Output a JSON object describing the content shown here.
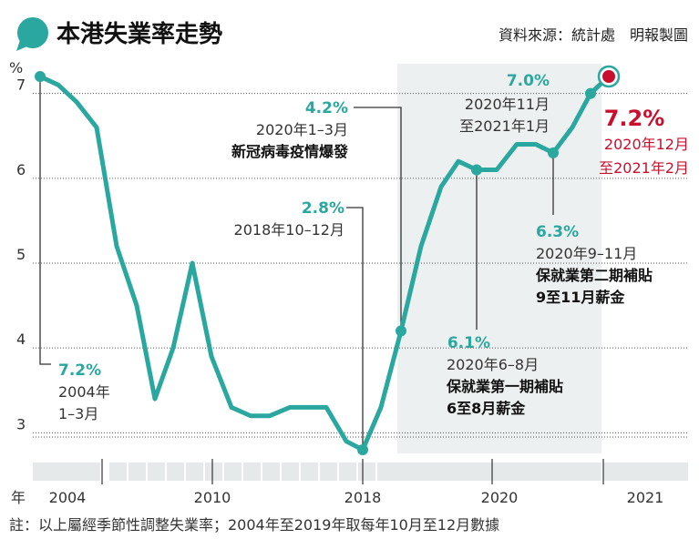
{
  "header": {
    "title": "本港失業率走勢",
    "source": "資料來源：統計處　明報製圖"
  },
  "footnote": "註：以上屬經季節性調整失業率；2004年至2019年取每年10月至12月數據",
  "colors": {
    "line": "#2aa8a0",
    "highlight": "#c8102e",
    "band": "#edf0f0",
    "icon": "#2aa8a0"
  },
  "chart_data": {
    "type": "line",
    "ylabel": "%",
    "xlabel": "年",
    "y_ticks": [
      "7",
      "6",
      "5",
      "4",
      "3"
    ],
    "y_tick_values": [
      7,
      6,
      5,
      4,
      3
    ],
    "ylim": [
      2.7,
      7.45
    ],
    "x_ticks": [
      "2004",
      "2010",
      "2018",
      "2020",
      "2021"
    ],
    "grid": "horizontal dotted",
    "shaded_period": "2020",
    "series": [
      {
        "values": [
          7.2,
          7.1,
          6.9,
          6.6,
          5.2,
          4.5,
          3.4,
          4.0,
          5.0,
          3.9,
          3.3,
          3.2,
          3.2,
          3.3,
          3.3,
          3.3,
          2.9,
          2.8,
          3.3,
          4.2,
          5.2,
          5.9,
          6.2,
          6.1,
          6.1,
          6.4,
          6.4,
          6.3,
          6.6,
          7.0,
          7.2
        ]
      }
    ],
    "annotations": [
      {
        "value": "7.2%",
        "lines": [
          "2004年",
          "1–3月"
        ]
      },
      {
        "value": "2.8%",
        "lines": [
          "2018年10–12月"
        ]
      },
      {
        "value": "4.2%",
        "lines": [
          "2020年1–3月"
        ],
        "bold": [
          "新冠病毒疫情爆發"
        ]
      },
      {
        "value": "6.1%",
        "lines": [
          "2020年6–8月"
        ],
        "bold": [
          "保就業第一期補貼",
          "6至8月薪金"
        ]
      },
      {
        "value": "6.3%",
        "lines": [
          "2020年9–11月"
        ],
        "bold": [
          "保就業第二期補貼",
          "9至11月薪金"
        ]
      },
      {
        "value": "7.0%",
        "lines": [
          "2020年11月",
          "至2021年1月"
        ]
      },
      {
        "value": "7.2%",
        "lines": [
          "2020年12月",
          "至2021年2月"
        ]
      }
    ]
  }
}
